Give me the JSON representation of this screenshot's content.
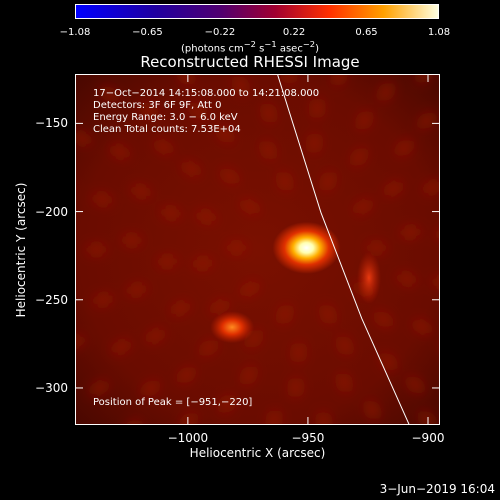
{
  "chart_data": {
    "type": "heatmap",
    "title": "Reconstructed RHESSI Image",
    "xlabel": "Heliocentric X (arcsec)",
    "ylabel": "Heliocentric Y (arcsec)",
    "xlim": [
      -1047,
      -895
    ],
    "ylim": [
      -321,
      -122
    ],
    "x_ticks": [
      -1000,
      -950,
      -900
    ],
    "x_tick_labels": [
      "−1000",
      "−950",
      "−900"
    ],
    "y_ticks": [
      -150,
      -200,
      -250,
      -300
    ],
    "y_tick_labels": [
      "−150",
      "−200",
      "−250",
      "−300"
    ],
    "colorbar": {
      "colormap": "hot",
      "range": [
        -1.08,
        1.08
      ],
      "tick_values": [
        -1.08,
        -0.65,
        -0.22,
        0.22,
        0.65,
        1.08
      ],
      "tick_labels": [
        "−1.08",
        "−0.65",
        "−0.22",
        "0.22",
        "0.65",
        "1.08"
      ],
      "units_base": "(photons cm",
      "units_sup1": "−2",
      "units_mid": " s",
      "units_sup2": "−1",
      "units_mid2": " asec",
      "units_sup3": "−2",
      "units_end": ")"
    },
    "annotations": {
      "line1": "17−Oct−2014 14:15:08.000 to 14:21:08.000",
      "line2": "Detectors: 3F 6F 9F, Att 0",
      "line3": "Energy Range: 3.0 − 6.0 keV",
      "line4": "Clean    Total counts: 7.53E+04",
      "peak": "Position of Peak = [−951,−220]"
    },
    "sources": [
      {
        "x": -951,
        "y": -220,
        "relative_intensity": 1.0
      },
      {
        "x": -982,
        "y": -265,
        "relative_intensity": 0.55
      },
      {
        "x": -925,
        "y": -237,
        "relative_intensity": 0.35
      }
    ],
    "limb_x": [
      -963,
      -945,
      -928,
      -908
    ],
    "limb_y": [
      -122,
      -200,
      -260,
      -321
    ]
  },
  "footer": {
    "date": "3−Jun−2019 16:04"
  }
}
